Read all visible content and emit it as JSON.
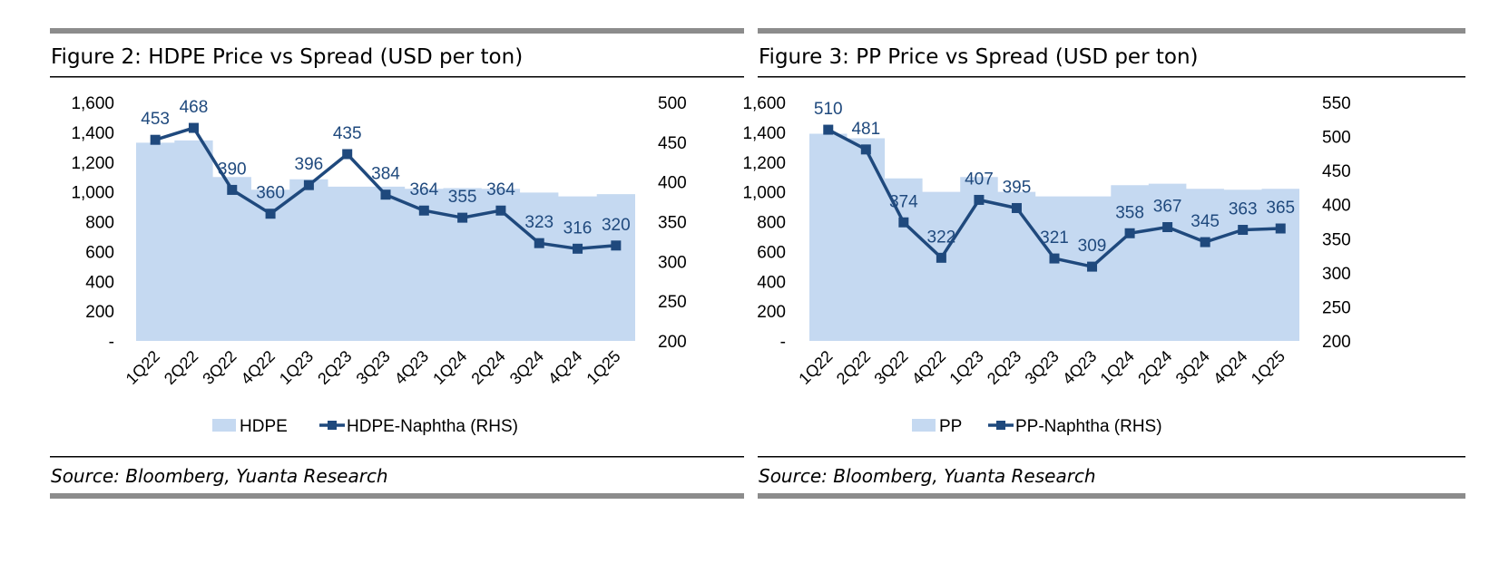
{
  "colors": {
    "area": "#c5d9f1",
    "line": "#1f497d",
    "label": "#1f497d",
    "rule_thick": "#8c8c8c",
    "rule_thin": "#000000"
  },
  "chart_data": [
    {
      "type": "area+line",
      "title": "Figure 2: HDPE Price vs Spread (USD per ton)",
      "source": "Source:  Bloomberg, Yuanta Research",
      "categories": [
        "1Q22",
        "2Q22",
        "3Q22",
        "4Q22",
        "1Q23",
        "2Q23",
        "3Q23",
        "4Q23",
        "1Q24",
        "2Q24",
        "3Q24",
        "4Q24",
        "1Q25"
      ],
      "series": [
        {
          "name": "HDPE",
          "axis": "left",
          "kind": "area",
          "values": [
            1330,
            1345,
            1100,
            1015,
            1085,
            1035,
            1035,
            1020,
            1025,
            1020,
            995,
            970,
            985
          ]
        },
        {
          "name": "HDPE-Naphtha (RHS)",
          "axis": "right",
          "kind": "line",
          "values": [
            453,
            468,
            390,
            360,
            396,
            435,
            384,
            364,
            355,
            364,
            323,
            316,
            320
          ]
        }
      ],
      "data_labels": [
        "453",
        "468",
        "390",
        "360",
        "396",
        "435",
        "384",
        "364",
        "355",
        "364",
        "323",
        "316",
        "320"
      ],
      "y_left": {
        "min": 0,
        "max": 1600,
        "ticks": [
          "-",
          "200",
          "400",
          "600",
          "800",
          "1,000",
          "1,200",
          "1,400",
          "1,600"
        ]
      },
      "y_right": {
        "min": 200,
        "max": 500,
        "ticks": [
          "200",
          "250",
          "300",
          "350",
          "400",
          "450",
          "500"
        ]
      },
      "legend": {
        "area": "HDPE",
        "line": "HDPE-Naphtha (RHS)",
        "position": "bottom"
      }
    },
    {
      "type": "area+line",
      "title": "Figure 3: PP Price vs Spread (USD per ton)",
      "source": "Source:  Bloomberg, Yuanta Research",
      "categories": [
        "1Q22",
        "2Q22",
        "3Q22",
        "4Q22",
        "1Q23",
        "2Q23",
        "3Q23",
        "4Q23",
        "1Q24",
        "2Q24",
        "3Q24",
        "4Q24",
        "1Q25"
      ],
      "series": [
        {
          "name": "PP",
          "axis": "left",
          "kind": "area",
          "values": [
            1390,
            1360,
            1090,
            1000,
            1100,
            1000,
            970,
            970,
            1045,
            1055,
            1020,
            1015,
            1020
          ]
        },
        {
          "name": "PP-Naphtha (RHS)",
          "axis": "right",
          "kind": "line",
          "values": [
            510,
            481,
            374,
            322,
            407,
            395,
            321,
            309,
            358,
            367,
            345,
            363,
            365
          ]
        }
      ],
      "data_labels": [
        "510",
        "481",
        "374",
        "322",
        "407",
        "395",
        "321",
        "309",
        "358",
        "367",
        "345",
        "363",
        "365"
      ],
      "y_left": {
        "min": 0,
        "max": 1600,
        "ticks": [
          "-",
          "200",
          "400",
          "600",
          "800",
          "1,000",
          "1,200",
          "1,400",
          "1,600"
        ]
      },
      "y_right": {
        "min": 200,
        "max": 550,
        "ticks": [
          "200",
          "250",
          "300",
          "350",
          "400",
          "450",
          "500",
          "550"
        ]
      },
      "legend": {
        "area": "PP",
        "line": "PP-Naphtha (RHS)",
        "position": "bottom"
      }
    }
  ]
}
